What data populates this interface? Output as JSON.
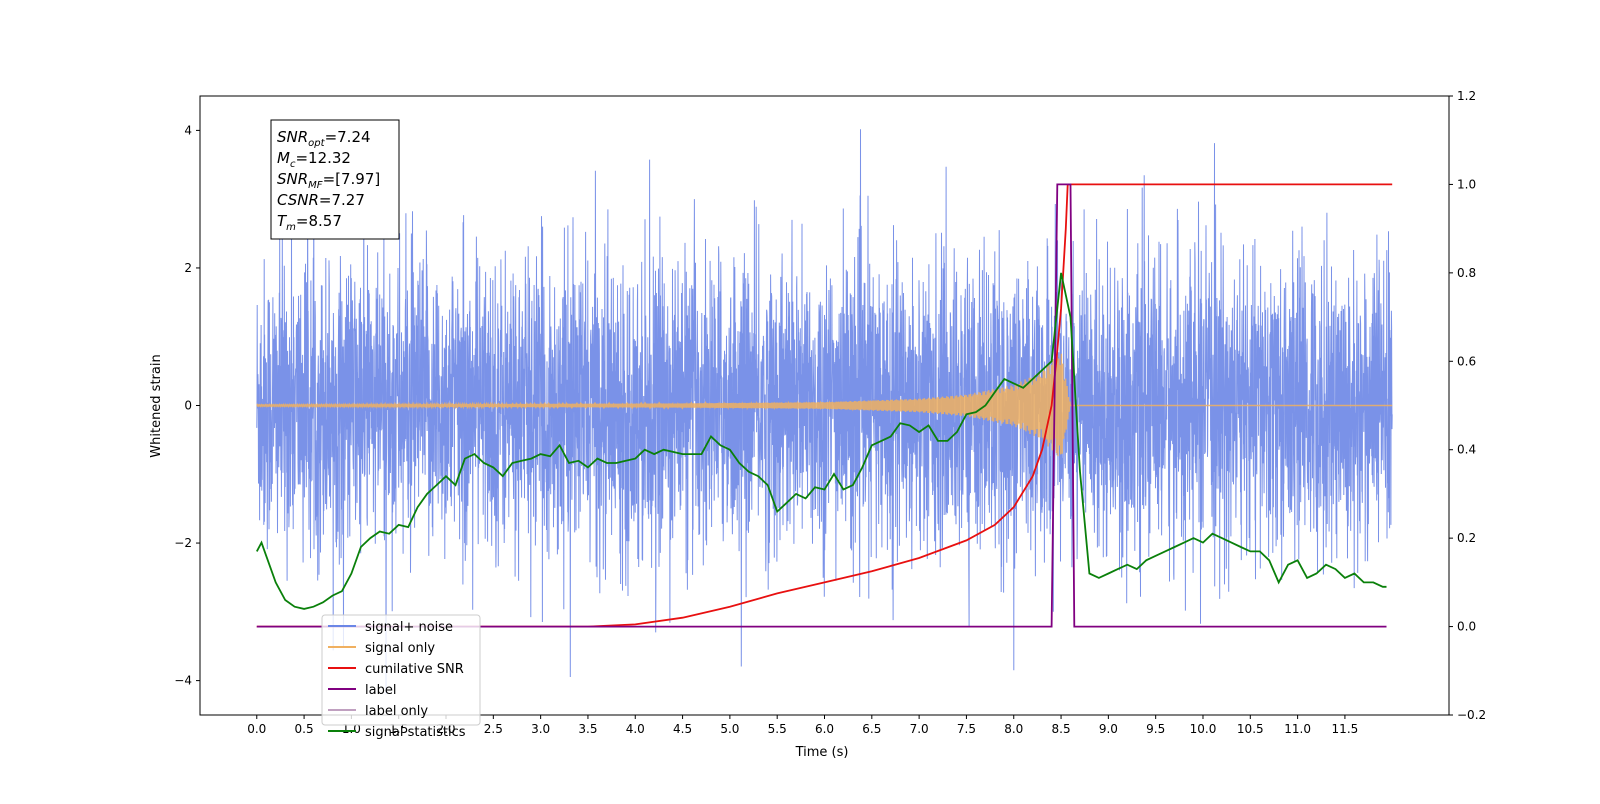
{
  "chart_data": {
    "type": "line",
    "title": "",
    "xlabel": "Time (s)",
    "ylabel": "Whitened strain",
    "xlim": [
      -0.6,
      12.6
    ],
    "ylim": [
      -4.5,
      4.5
    ],
    "y2lim": [
      -0.2,
      1.2
    ],
    "x_ticks": [
      "0.0",
      "0.5",
      "1.0",
      "1.5",
      "2.0",
      "2.5",
      "3.0",
      "3.5",
      "4.0",
      "4.5",
      "5.0",
      "5.5",
      "6.0",
      "6.5",
      "7.0",
      "7.5",
      "8.0",
      "8.5",
      "9.0",
      "9.5",
      "10.0",
      "10.5",
      "11.0",
      "11.5"
    ],
    "y_ticks": [
      "4",
      "2",
      "0",
      "−2",
      "−4"
    ],
    "y2_ticks": [
      "1.2",
      "1.0",
      "0.8",
      "0.6",
      "0.4",
      "0.2",
      "0.0",
      "−0.2"
    ],
    "grid": false,
    "legend_position": "lower-left",
    "stats": [
      {
        "base": "SNR",
        "sub": "opt",
        "rest": "=7.24"
      },
      {
        "base": "M",
        "sub": "c",
        "rest": "=12.32"
      },
      {
        "base": "SNR",
        "sub": "MF",
        "rest": "=[7.97]"
      },
      {
        "base": "CSNR",
        "sub": "",
        "rest": "=7.27"
      },
      {
        "base": "T",
        "sub": "m",
        "rest": "=8.57"
      }
    ],
    "series": [
      {
        "name": "signal+ noise",
        "color": "#6b86e6",
        "axis": "left",
        "noise_std": 1.05,
        "x_range": [
          0.0,
          12.0
        ]
      },
      {
        "name": "signal only",
        "color": "#f0b060",
        "axis": "left",
        "envelope": [
          [
            0,
            0.01
          ],
          [
            4.5,
            0.03
          ],
          [
            6.0,
            0.05
          ],
          [
            7.0,
            0.1
          ],
          [
            7.5,
            0.16
          ],
          [
            8.0,
            0.3
          ],
          [
            8.3,
            0.5
          ],
          [
            8.5,
            0.8
          ],
          [
            8.6,
            0.0
          ],
          [
            12,
            0.0
          ]
        ]
      },
      {
        "name": "cumilative SNR",
        "color": "#e81010",
        "axis": "right",
        "x": [
          0.0,
          3.5,
          4.0,
          4.5,
          5.0,
          5.5,
          6.0,
          6.5,
          7.0,
          7.5,
          7.8,
          8.0,
          8.2,
          8.3,
          8.4,
          8.45,
          8.5,
          8.55,
          8.57,
          12.0
        ],
        "y": [
          0.0,
          0.0,
          0.005,
          0.02,
          0.045,
          0.075,
          0.1,
          0.125,
          0.155,
          0.195,
          0.23,
          0.27,
          0.34,
          0.4,
          0.5,
          0.6,
          0.72,
          0.9,
          1.0,
          1.0
        ]
      },
      {
        "name": "label",
        "color": "#800080",
        "axis": "right",
        "x": [
          0.0,
          8.4,
          8.46,
          8.6,
          8.64,
          11.94
        ],
        "y": [
          0.0,
          0.0,
          1.0,
          1.0,
          0.0,
          0.0
        ]
      },
      {
        "name": "label only",
        "color": "#c0a0c0",
        "axis": "right",
        "x": [],
        "y": []
      },
      {
        "name": "signal statistics",
        "color": "#0a800a",
        "axis": "right",
        "x": [
          0.0,
          0.05,
          0.1,
          0.2,
          0.3,
          0.4,
          0.5,
          0.6,
          0.7,
          0.8,
          0.9,
          1.0,
          1.1,
          1.2,
          1.3,
          1.4,
          1.5,
          1.6,
          1.7,
          1.8,
          1.9,
          2.0,
          2.1,
          2.2,
          2.3,
          2.4,
          2.5,
          2.6,
          2.7,
          2.8,
          2.9,
          3.0,
          3.1,
          3.2,
          3.3,
          3.4,
          3.5,
          3.6,
          3.7,
          3.8,
          3.9,
          4.0,
          4.1,
          4.2,
          4.3,
          4.4,
          4.5,
          4.6,
          4.7,
          4.8,
          4.9,
          5.0,
          5.1,
          5.2,
          5.3,
          5.4,
          5.5,
          5.6,
          5.7,
          5.8,
          5.9,
          6.0,
          6.1,
          6.2,
          6.3,
          6.4,
          6.5,
          6.6,
          6.7,
          6.8,
          6.9,
          7.0,
          7.1,
          7.2,
          7.3,
          7.4,
          7.5,
          7.6,
          7.7,
          7.8,
          7.9,
          8.0,
          8.1,
          8.2,
          8.3,
          8.4,
          8.5,
          8.6,
          8.7,
          8.8,
          8.9,
          9.0,
          9.1,
          9.2,
          9.3,
          9.4,
          9.5,
          9.6,
          9.7,
          9.8,
          9.9,
          10.0,
          10.1,
          10.2,
          10.3,
          10.4,
          10.5,
          10.6,
          10.7,
          10.8,
          10.9,
          11.0,
          11.1,
          11.2,
          11.3,
          11.4,
          11.5,
          11.6,
          11.7,
          11.8,
          11.9,
          11.94
        ],
        "y": [
          0.17,
          0.19,
          0.16,
          0.1,
          0.06,
          0.045,
          0.04,
          0.045,
          0.055,
          0.07,
          0.08,
          0.12,
          0.18,
          0.2,
          0.215,
          0.21,
          0.23,
          0.225,
          0.27,
          0.3,
          0.32,
          0.34,
          0.32,
          0.38,
          0.39,
          0.37,
          0.36,
          0.34,
          0.37,
          0.375,
          0.38,
          0.39,
          0.385,
          0.41,
          0.37,
          0.375,
          0.36,
          0.38,
          0.37,
          0.37,
          0.375,
          0.38,
          0.4,
          0.39,
          0.4,
          0.395,
          0.39,
          0.39,
          0.39,
          0.43,
          0.41,
          0.4,
          0.37,
          0.35,
          0.34,
          0.32,
          0.26,
          0.28,
          0.3,
          0.29,
          0.315,
          0.31,
          0.345,
          0.31,
          0.32,
          0.36,
          0.41,
          0.42,
          0.43,
          0.46,
          0.455,
          0.44,
          0.455,
          0.42,
          0.42,
          0.44,
          0.48,
          0.485,
          0.5,
          0.53,
          0.56,
          0.55,
          0.54,
          0.56,
          0.58,
          0.6,
          0.8,
          0.7,
          0.35,
          0.12,
          0.11,
          0.12,
          0.13,
          0.14,
          0.13,
          0.15,
          0.16,
          0.17,
          0.18,
          0.19,
          0.2,
          0.19,
          0.21,
          0.2,
          0.19,
          0.18,
          0.17,
          0.17,
          0.15,
          0.1,
          0.14,
          0.15,
          0.11,
          0.12,
          0.14,
          0.13,
          0.11,
          0.12,
          0.1,
          0.1,
          0.09,
          0.09
        ]
      }
    ]
  }
}
